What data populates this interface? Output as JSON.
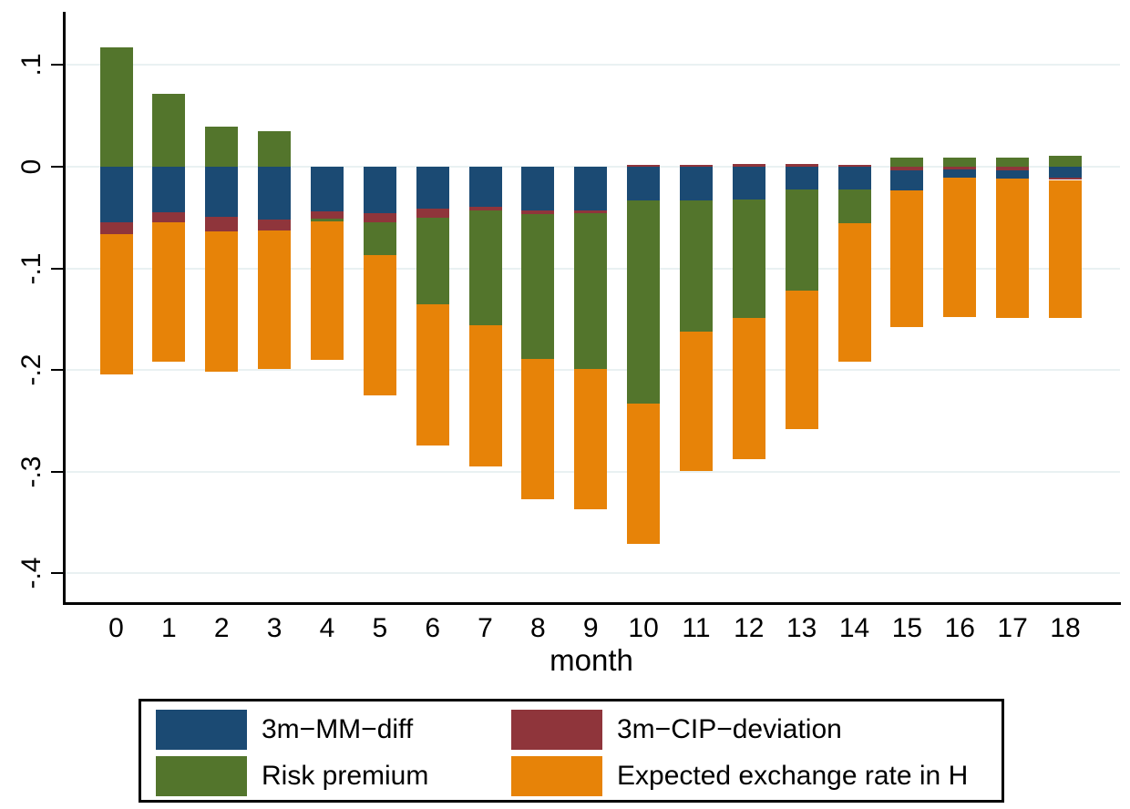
{
  "chart_data": {
    "type": "bar",
    "stacked": true,
    "title": "",
    "xlabel": "month",
    "ylabel": "",
    "grid": true,
    "ylim": [
      -0.428,
      0.152
    ],
    "y_ticks": [
      {
        "label": ".1",
        "value": 0.1
      },
      {
        "label": "0",
        "value": 0.0
      },
      {
        "label": "-.1",
        "value": -0.1
      },
      {
        "label": "-.2",
        "value": -0.2
      },
      {
        "label": "-.3",
        "value": -0.3
      },
      {
        "label": "-.4",
        "value": -0.4
      }
    ],
    "x": [
      "0",
      "1",
      "2",
      "3",
      "4",
      "5",
      "6",
      "7",
      "8",
      "9",
      "10",
      "11",
      "12",
      "13",
      "14",
      "15",
      "16",
      "17",
      "18"
    ],
    "series": [
      {
        "key": "mm",
        "name": "3m−MM−diff",
        "color": "#1b4a73"
      },
      {
        "key": "cip",
        "name": "3m−CIP−deviation",
        "color": "#8f353b"
      },
      {
        "key": "risk",
        "name": "Risk premium",
        "color": "#53752c"
      },
      {
        "key": "exp",
        "name": "Expected exchange rate in H",
        "color": "#e78308"
      }
    ],
    "bars": [
      {
        "month": "0",
        "segments": [
          {
            "s": "risk",
            "v": 0.117
          },
          {
            "s": "mm",
            "v": -0.055
          },
          {
            "s": "cip",
            "v": -0.011
          },
          {
            "s": "exp",
            "v": -0.138
          }
        ]
      },
      {
        "month": "1",
        "segments": [
          {
            "s": "risk",
            "v": 0.072
          },
          {
            "s": "mm",
            "v": -0.045
          },
          {
            "s": "cip",
            "v": -0.01
          },
          {
            "s": "exp",
            "v": -0.137
          }
        ]
      },
      {
        "month": "2",
        "segments": [
          {
            "s": "risk",
            "v": 0.039
          },
          {
            "s": "mm",
            "v": -0.049
          },
          {
            "s": "cip",
            "v": -0.015
          },
          {
            "s": "exp",
            "v": -0.138
          }
        ]
      },
      {
        "month": "3",
        "segments": [
          {
            "s": "risk",
            "v": 0.035
          },
          {
            "s": "mm",
            "v": -0.052
          },
          {
            "s": "cip",
            "v": -0.011
          },
          {
            "s": "exp",
            "v": -0.136
          }
        ]
      },
      {
        "month": "4",
        "segments": [
          {
            "s": "mm",
            "v": -0.044
          },
          {
            "s": "cip",
            "v": -0.007
          },
          {
            "s": "risk",
            "v": -0.003
          },
          {
            "s": "exp",
            "v": -0.136
          }
        ]
      },
      {
        "month": "5",
        "segments": [
          {
            "s": "mm",
            "v": -0.046
          },
          {
            "s": "cip",
            "v": -0.009
          },
          {
            "s": "risk",
            "v": -0.032
          },
          {
            "s": "exp",
            "v": -0.138
          }
        ]
      },
      {
        "month": "6",
        "segments": [
          {
            "s": "mm",
            "v": -0.041
          },
          {
            "s": "cip",
            "v": -0.009
          },
          {
            "s": "risk",
            "v": -0.085
          },
          {
            "s": "exp",
            "v": -0.139
          }
        ]
      },
      {
        "month": "7",
        "segments": [
          {
            "s": "mm",
            "v": -0.039
          },
          {
            "s": "cip",
            "v": -0.004
          },
          {
            "s": "risk",
            "v": -0.113
          },
          {
            "s": "exp",
            "v": -0.139
          }
        ]
      },
      {
        "month": "8",
        "segments": [
          {
            "s": "mm",
            "v": -0.043
          },
          {
            "s": "cip",
            "v": -0.004
          },
          {
            "s": "risk",
            "v": -0.142
          },
          {
            "s": "exp",
            "v": -0.138
          }
        ]
      },
      {
        "month": "9",
        "segments": [
          {
            "s": "mm",
            "v": -0.043
          },
          {
            "s": "cip",
            "v": -0.003
          },
          {
            "s": "risk",
            "v": -0.153
          },
          {
            "s": "exp",
            "v": -0.138
          }
        ]
      },
      {
        "month": "10",
        "segments": [
          {
            "s": "cip",
            "v": 0.002
          },
          {
            "s": "mm",
            "v": -0.033
          },
          {
            "s": "risk",
            "v": -0.2
          },
          {
            "s": "exp",
            "v": -0.138
          }
        ]
      },
      {
        "month": "11",
        "segments": [
          {
            "s": "cip",
            "v": 0.002
          },
          {
            "s": "mm",
            "v": -0.033
          },
          {
            "s": "risk",
            "v": -0.129
          },
          {
            "s": "exp",
            "v": -0.137
          }
        ]
      },
      {
        "month": "12",
        "segments": [
          {
            "s": "cip",
            "v": 0.003
          },
          {
            "s": "mm",
            "v": -0.032
          },
          {
            "s": "risk",
            "v": -0.117
          },
          {
            "s": "exp",
            "v": -0.139
          }
        ]
      },
      {
        "month": "13",
        "segments": [
          {
            "s": "cip",
            "v": 0.003
          },
          {
            "s": "mm",
            "v": -0.022
          },
          {
            "s": "risk",
            "v": -0.1
          },
          {
            "s": "exp",
            "v": -0.136
          }
        ]
      },
      {
        "month": "14",
        "segments": [
          {
            "s": "cip",
            "v": 0.002
          },
          {
            "s": "mm",
            "v": -0.022
          },
          {
            "s": "risk",
            "v": -0.034
          },
          {
            "s": "exp",
            "v": -0.136
          }
        ]
      },
      {
        "month": "15",
        "segments": [
          {
            "s": "risk",
            "v": 0.009
          },
          {
            "s": "cip",
            "v": -0.004
          },
          {
            "s": "mm",
            "v": -0.019
          },
          {
            "s": "exp",
            "v": -0.135
          }
        ]
      },
      {
        "month": "16",
        "segments": [
          {
            "s": "risk",
            "v": 0.009
          },
          {
            "s": "cip",
            "v": -0.003
          },
          {
            "s": "mm",
            "v": -0.008
          },
          {
            "s": "exp",
            "v": -0.137
          }
        ]
      },
      {
        "month": "17",
        "segments": [
          {
            "s": "risk",
            "v": 0.009
          },
          {
            "s": "cip",
            "v": -0.004
          },
          {
            "s": "mm",
            "v": -0.008
          },
          {
            "s": "exp",
            "v": -0.137
          }
        ]
      },
      {
        "month": "18",
        "segments": [
          {
            "s": "risk",
            "v": 0.011
          },
          {
            "s": "mm",
            "v": -0.011
          },
          {
            "s": "cip",
            "v": -0.002
          },
          {
            "s": "exp",
            "v": -0.136
          }
        ]
      }
    ]
  },
  "legend": {
    "items": [
      {
        "key": "mm",
        "label": "3m−MM−diff",
        "color": "#1b4a73"
      },
      {
        "key": "cip",
        "label": "3m−CIP−deviation",
        "color": "#8f353b"
      },
      {
        "key": "risk",
        "label": "Risk premium",
        "color": "#53752c"
      },
      {
        "key": "exp",
        "label": "Expected exchange rate in H",
        "color": "#e78308"
      }
    ]
  },
  "colors": {
    "axis": "#000000",
    "gridline": "#e9f1f2",
    "background": "#ffffff"
  }
}
